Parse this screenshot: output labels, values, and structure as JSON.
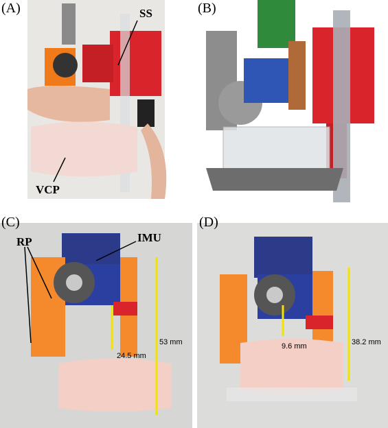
{
  "panels": [
    {
      "label": "(A)",
      "annotations": [
        "SS",
        "VCP"
      ]
    },
    {
      "label": "(B)"
    },
    {
      "label": "(C)",
      "annotations": [
        "RP",
        "IMU",
        "24.5 mm",
        "53 mm"
      ]
    },
    {
      "label": "(D)",
      "annotations": [
        "9.6 mm",
        "38.2 mm"
      ]
    }
  ]
}
